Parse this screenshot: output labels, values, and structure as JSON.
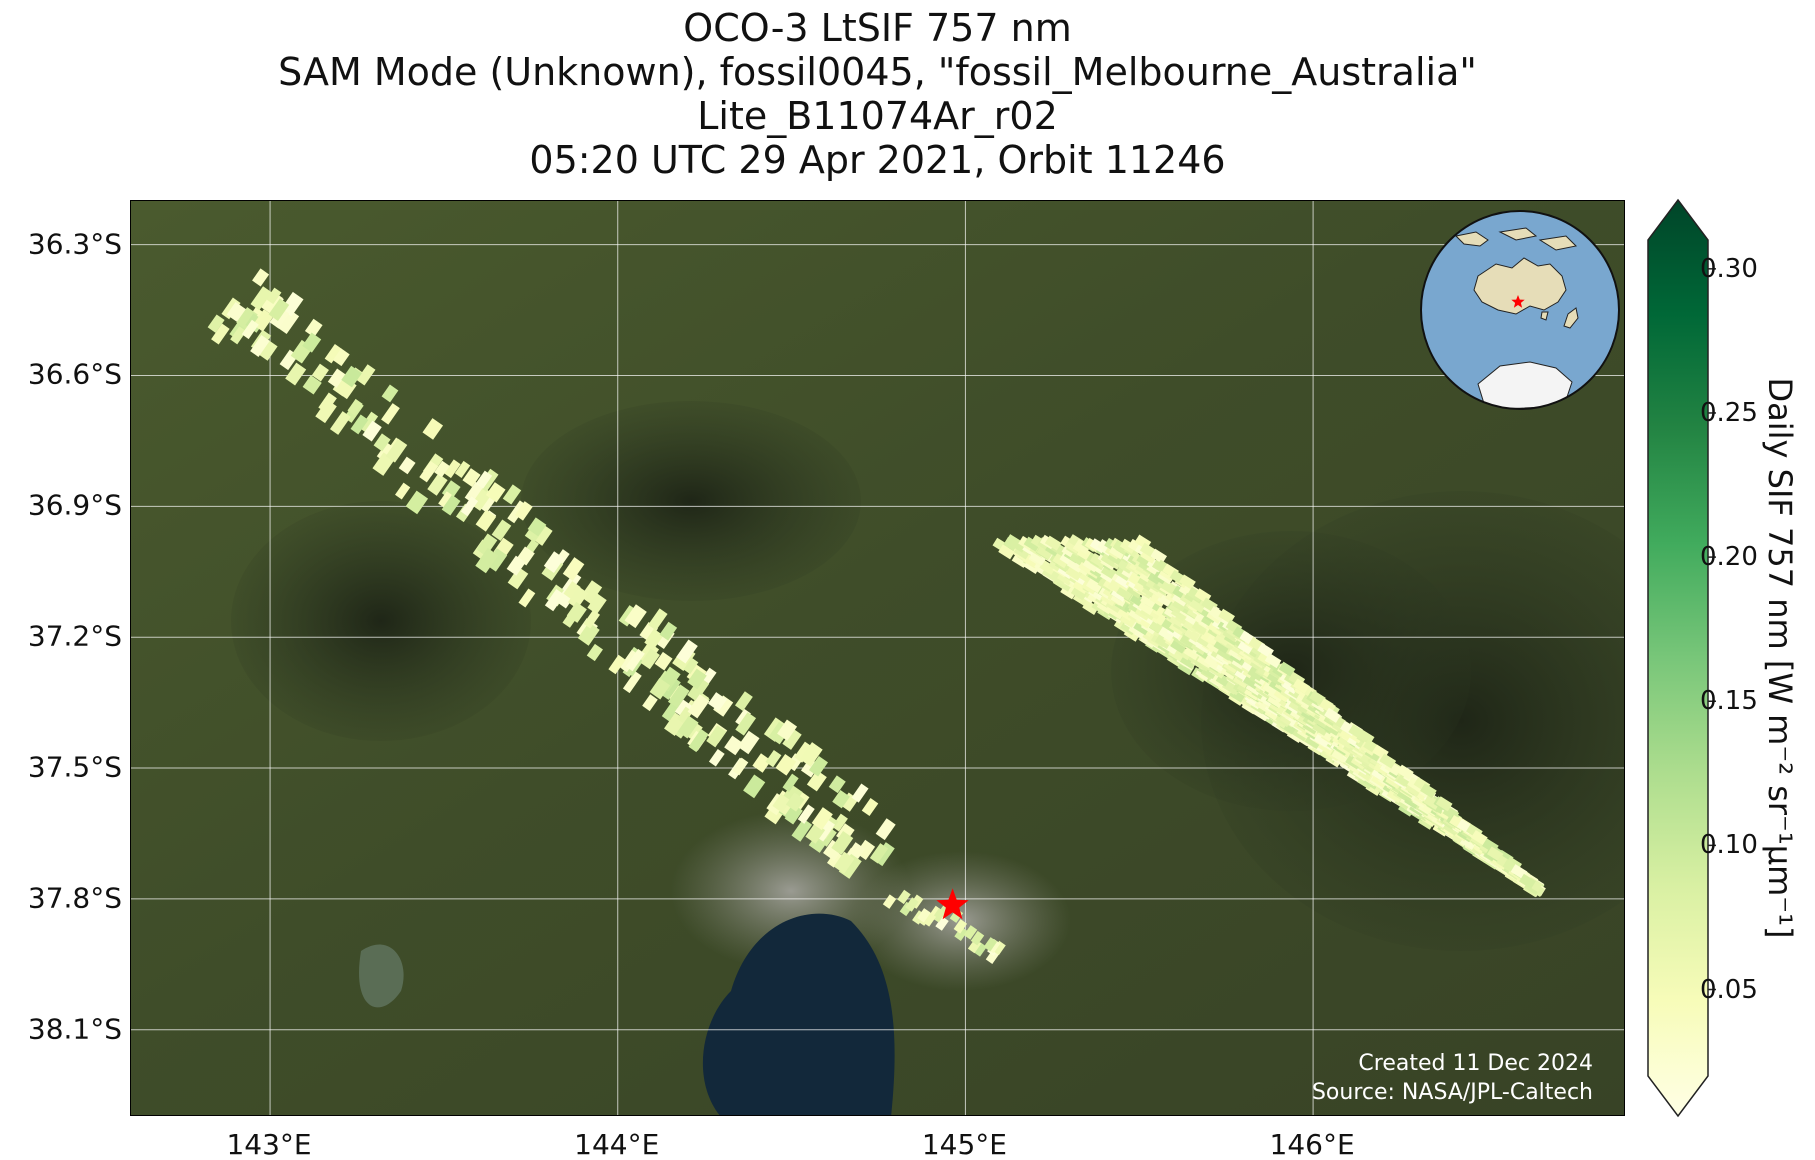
{
  "title": {
    "line1": "OCO-3 LtSIF 757 nm",
    "line2": "SAM Mode (Unknown), fossil0045, \"fossil_Melbourne_Australia\"",
    "line3": "Lite_B11074Ar_r02",
    "line4": "05:20 UTC 29 Apr 2021, Orbit 11246"
  },
  "map": {
    "lat_ticks": [
      "36.3°S",
      "36.6°S",
      "36.9°S",
      "37.2°S",
      "37.5°S",
      "37.8°S",
      "38.1°S"
    ],
    "lon_ticks": [
      "143°E",
      "144°E",
      "145°E",
      "146°E"
    ],
    "lat_values": [
      -36.3,
      -36.6,
      -36.9,
      -37.2,
      -37.5,
      -37.8,
      -38.1
    ],
    "lon_values": [
      143,
      144,
      145,
      146
    ],
    "extent": {
      "lon_min": 142.6,
      "lon_max": 146.9,
      "lat_min": -38.3,
      "lat_max": -36.2
    },
    "target_marker": {
      "lat": -37.815,
      "lon": 144.963,
      "color": "#ff0000",
      "icon": "red-star-icon"
    },
    "credit_line1": "Created 11 Dec 2024",
    "credit_line2": "Source: NASA/JPL-Caltech"
  },
  "colorbar": {
    "ticks": [
      "0.05",
      "0.10",
      "0.15",
      "0.20",
      "0.25",
      "0.30"
    ],
    "tick_values": [
      0.05,
      0.1,
      0.15,
      0.2,
      0.25,
      0.3
    ],
    "min": 0.02,
    "max": 0.31,
    "extend": "both",
    "label": "Daily SIF 757 nm [W m⁻² sr⁻¹μm⁻¹]",
    "colormap": "YlGn"
  },
  "colors": {
    "land_dark": "#2f3c22",
    "land_mid": "#46542d",
    "land_light": "#5d6b3a",
    "water": "#12283a",
    "urban": "#8a8c84",
    "gridline": "#ffffff",
    "marker": "#ff0000"
  }
}
